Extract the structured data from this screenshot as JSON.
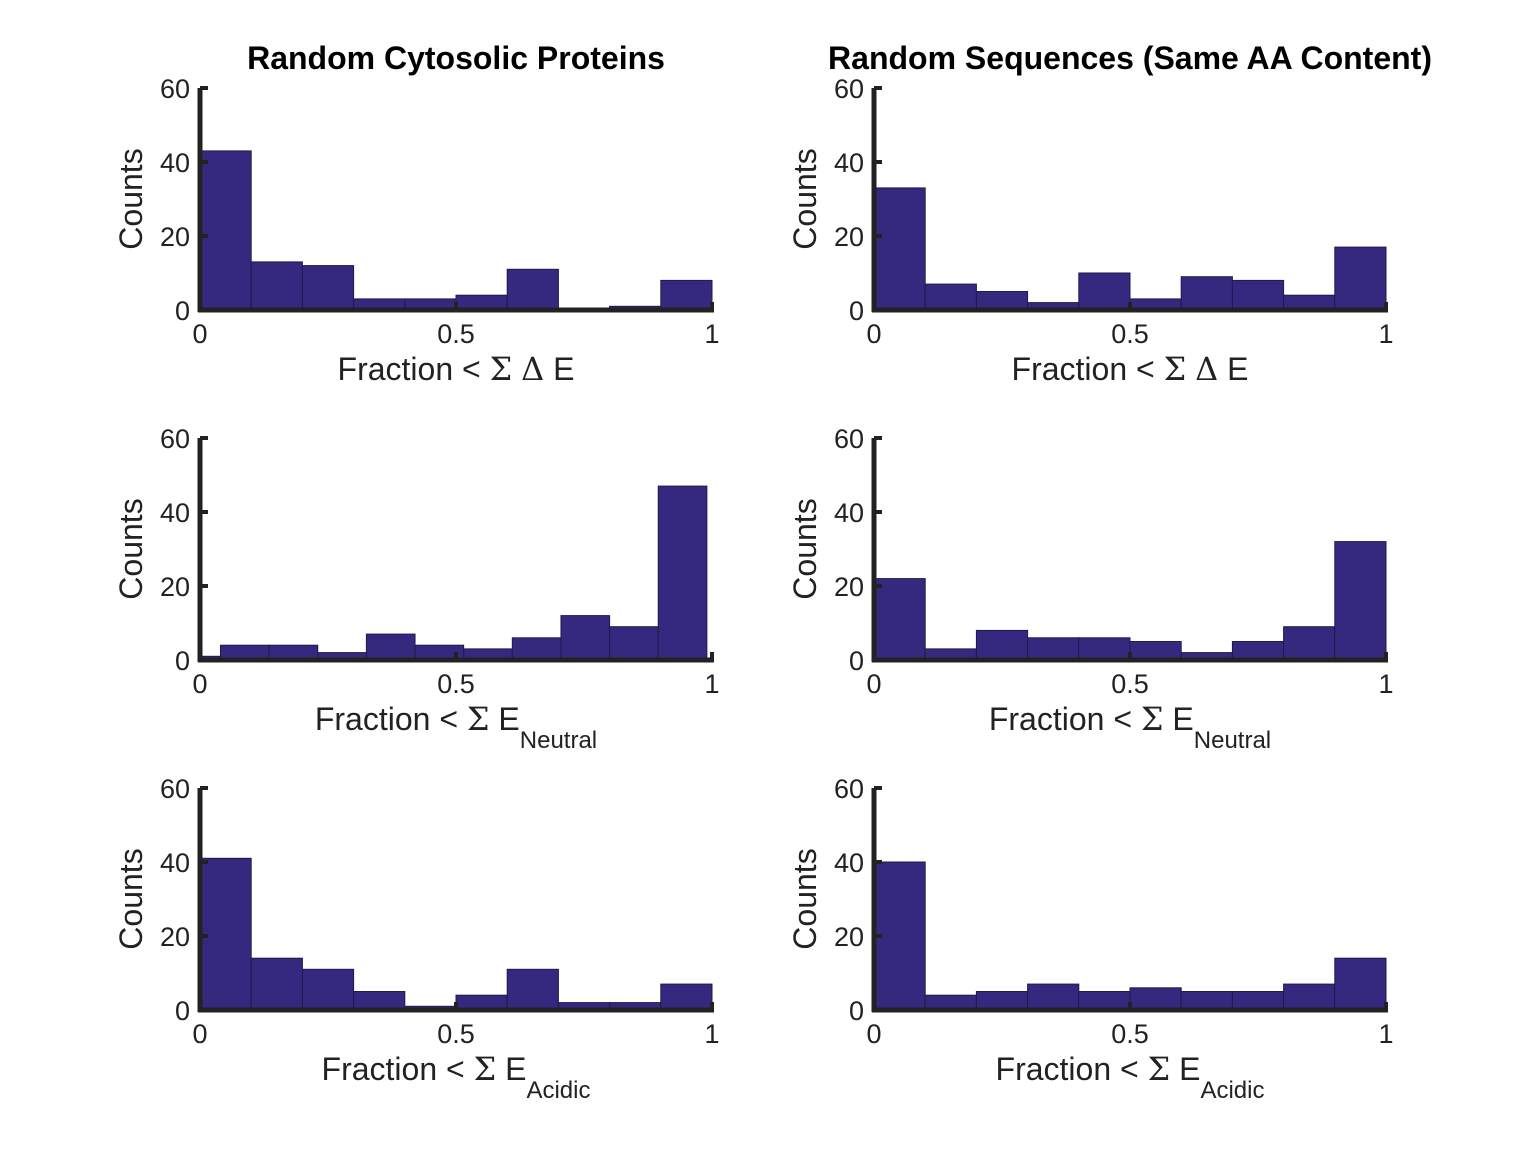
{
  "figure": {
    "bar_color": "#35297f",
    "bar_edge_color": "#1f1a4f",
    "axis_color": "#222222"
  },
  "chart_data": [
    {
      "type": "bar",
      "title": "Random Cytosolic Proteins",
      "xlabel": "Fraction < Σ Δ E",
      "xlabel_parts": {
        "main": "Fraction < Σ Δ E",
        "subscript": ""
      },
      "ylabel": "Counts",
      "xlim": [
        0,
        1
      ],
      "ylim": [
        0,
        60
      ],
      "xticks": [
        "0",
        "0.5",
        "1"
      ],
      "yticks": [
        "0",
        "20",
        "40",
        "60"
      ],
      "bin_edges": [
        0,
        0.1,
        0.2,
        0.3,
        0.4,
        0.5,
        0.6,
        0.7,
        0.8,
        0.9,
        1.0
      ],
      "values": [
        43,
        13,
        12,
        3,
        3,
        4,
        11,
        0.5,
        1,
        8
      ]
    },
    {
      "type": "bar",
      "title": "Random Sequences (Same AA Content)",
      "xlabel": "Fraction < Σ Δ E",
      "xlabel_parts": {
        "main": "Fraction < Σ Δ E",
        "subscript": ""
      },
      "ylabel": "Counts",
      "xlim": [
        0,
        1
      ],
      "ylim": [
        0,
        60
      ],
      "xticks": [
        "0",
        "0.5",
        "1"
      ],
      "yticks": [
        "0",
        "20",
        "40",
        "60"
      ],
      "bin_edges": [
        0,
        0.1,
        0.2,
        0.3,
        0.4,
        0.5,
        0.6,
        0.7,
        0.8,
        0.9,
        1.0
      ],
      "values": [
        33,
        7,
        5,
        2,
        10,
        3,
        9,
        8,
        4,
        17
      ]
    },
    {
      "type": "bar",
      "title": "",
      "xlabel": "Fraction < Σ ENeutral",
      "xlabel_parts": {
        "main": "Fraction < Σ E",
        "subscript": "Neutral"
      },
      "ylabel": "Counts",
      "xlim": [
        0,
        1
      ],
      "ylim": [
        0,
        60
      ],
      "xticks": [
        "0",
        "0.5",
        "1"
      ],
      "yticks": [
        "0",
        "20",
        "40",
        "60"
      ],
      "bin_edges": [
        0,
        0.04,
        0.135,
        0.23,
        0.325,
        0.42,
        0.515,
        0.61,
        0.705,
        0.8,
        0.895,
        0.99
      ],
      "values": [
        1,
        4,
        4,
        2,
        7,
        4,
        3,
        6,
        12,
        9,
        47
      ]
    },
    {
      "type": "bar",
      "title": "",
      "xlabel": "Fraction < Σ ENeutral",
      "xlabel_parts": {
        "main": "Fraction < Σ E",
        "subscript": "Neutral"
      },
      "ylabel": "Counts",
      "xlim": [
        0,
        1
      ],
      "ylim": [
        0,
        60
      ],
      "xticks": [
        "0",
        "0.5",
        "1"
      ],
      "yticks": [
        "0",
        "20",
        "40",
        "60"
      ],
      "bin_edges": [
        0,
        0.1,
        0.2,
        0.3,
        0.4,
        0.5,
        0.6,
        0.7,
        0.8,
        0.9,
        1.0
      ],
      "values": [
        22,
        3,
        8,
        6,
        6,
        5,
        2,
        5,
        9,
        32
      ]
    },
    {
      "type": "bar",
      "title": "",
      "xlabel": "Fraction < Σ EAcidic",
      "xlabel_parts": {
        "main": "Fraction < Σ E",
        "subscript": "Acidic"
      },
      "ylabel": "Counts",
      "xlim": [
        0,
        1
      ],
      "ylim": [
        0,
        60
      ],
      "xticks": [
        "0",
        "0.5",
        "1"
      ],
      "yticks": [
        "0",
        "20",
        "40",
        "60"
      ],
      "bin_edges": [
        0,
        0.1,
        0.2,
        0.3,
        0.4,
        0.5,
        0.6,
        0.7,
        0.8,
        0.9,
        1.0
      ],
      "values": [
        41,
        14,
        11,
        5,
        1,
        4,
        11,
        2,
        2,
        7
      ]
    },
    {
      "type": "bar",
      "title": "",
      "xlabel": "Fraction < Σ EAcidic",
      "xlabel_parts": {
        "main": "Fraction < Σ E",
        "subscript": "Acidic"
      },
      "ylabel": "Counts",
      "xlim": [
        0,
        1
      ],
      "ylim": [
        0,
        60
      ],
      "xticks": [
        "0",
        "0.5",
        "1"
      ],
      "yticks": [
        "0",
        "20",
        "40",
        "60"
      ],
      "bin_edges": [
        0,
        0.1,
        0.2,
        0.3,
        0.4,
        0.5,
        0.6,
        0.7,
        0.8,
        0.9,
        1.0
      ],
      "values": [
        40,
        4,
        5,
        7,
        5,
        6,
        5,
        5,
        7,
        14
      ]
    }
  ]
}
